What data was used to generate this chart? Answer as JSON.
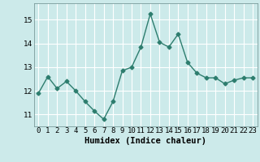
{
  "x": [
    0,
    1,
    2,
    3,
    4,
    5,
    6,
    7,
    8,
    9,
    10,
    11,
    12,
    13,
    14,
    15,
    16,
    17,
    18,
    19,
    20,
    21,
    22,
    23
  ],
  "y": [
    11.9,
    12.6,
    12.1,
    12.4,
    12.0,
    11.55,
    11.15,
    10.8,
    11.55,
    12.85,
    13.0,
    13.85,
    15.25,
    14.05,
    13.85,
    14.4,
    13.2,
    12.75,
    12.55,
    12.55,
    12.3,
    12.45,
    12.55,
    12.55
  ],
  "line_color": "#2d7d6e",
  "marker": "D",
  "marker_size": 2.5,
  "bg_color": "#cceaea",
  "grid_color": "#ffffff",
  "xlabel": "Humidex (Indice chaleur)",
  "ylim": [
    10.5,
    15.7
  ],
  "xlim": [
    -0.5,
    23.5
  ],
  "yticks": [
    11,
    12,
    13,
    14,
    15
  ],
  "xlabel_fontsize": 7.5,
  "tick_fontsize": 6.5,
  "linewidth": 1.0
}
